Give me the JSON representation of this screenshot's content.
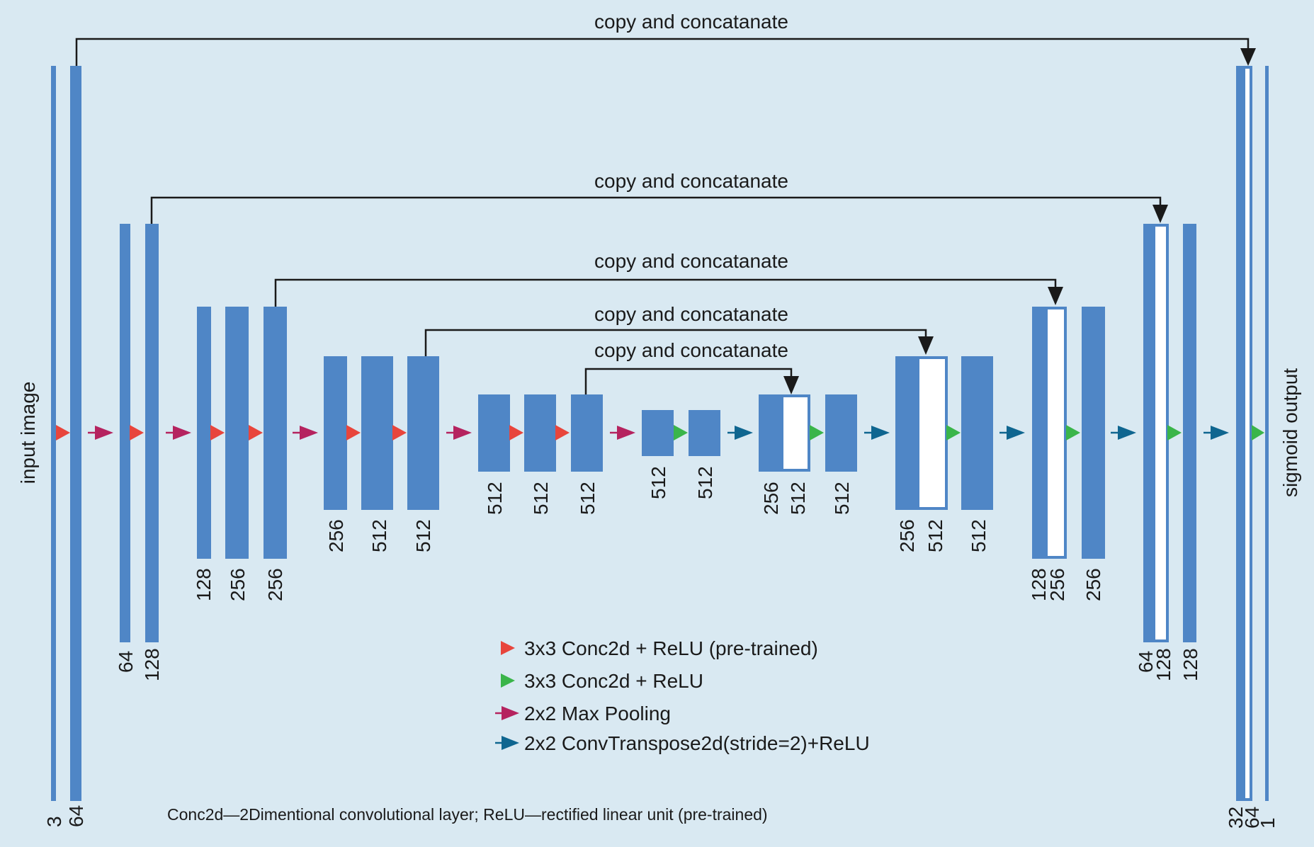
{
  "side_labels": {
    "input": "input image",
    "output": "sigmoid output"
  },
  "skip_label": "copy and concatanate",
  "channels": {
    "enc1": [
      "3",
      "64"
    ],
    "enc2": [
      "64",
      "128"
    ],
    "enc3": [
      "128",
      "256",
      "256"
    ],
    "enc4": [
      "256",
      "512",
      "512"
    ],
    "enc5": [
      "512",
      "512",
      "512"
    ],
    "bottleneck": [
      "512",
      "512"
    ],
    "dec1": [
      "256",
      "512",
      "512"
    ],
    "dec2": [
      "256",
      "512",
      "512"
    ],
    "dec3": [
      "128",
      "256",
      "256"
    ],
    "dec4": [
      "64",
      "128",
      "128"
    ],
    "dec5": [
      "32",
      "64",
      "1"
    ]
  },
  "legend": [
    {
      "label": "3x3 Conc2d + ReLU (pre-trained)",
      "color": "#e8453c",
      "icon": "red-triangle-icon"
    },
    {
      "label": "3x3 Conc2d + ReLU",
      "color": "#3ab54a",
      "icon": "green-triangle-icon"
    },
    {
      "label": "2x2 Max Pooling",
      "color": "#b5235f",
      "icon": "magenta-arrow-icon"
    },
    {
      "label": "2x2 ConvTranspose2d(stride=2)+ReLU",
      "color": "#0f6690",
      "icon": "teal-arrow-icon"
    }
  ],
  "footnote": "Conc2d—2Dimentional convolutional layer; ReLU—rectified linear unit (pre-trained)",
  "colors": {
    "background": "#d9e9f2",
    "bar": "#4f86c6",
    "conv_pretrained": "#e8453c",
    "conv": "#3ab54a",
    "maxpool": "#b5235f",
    "upconv": "#0f6690"
  }
}
